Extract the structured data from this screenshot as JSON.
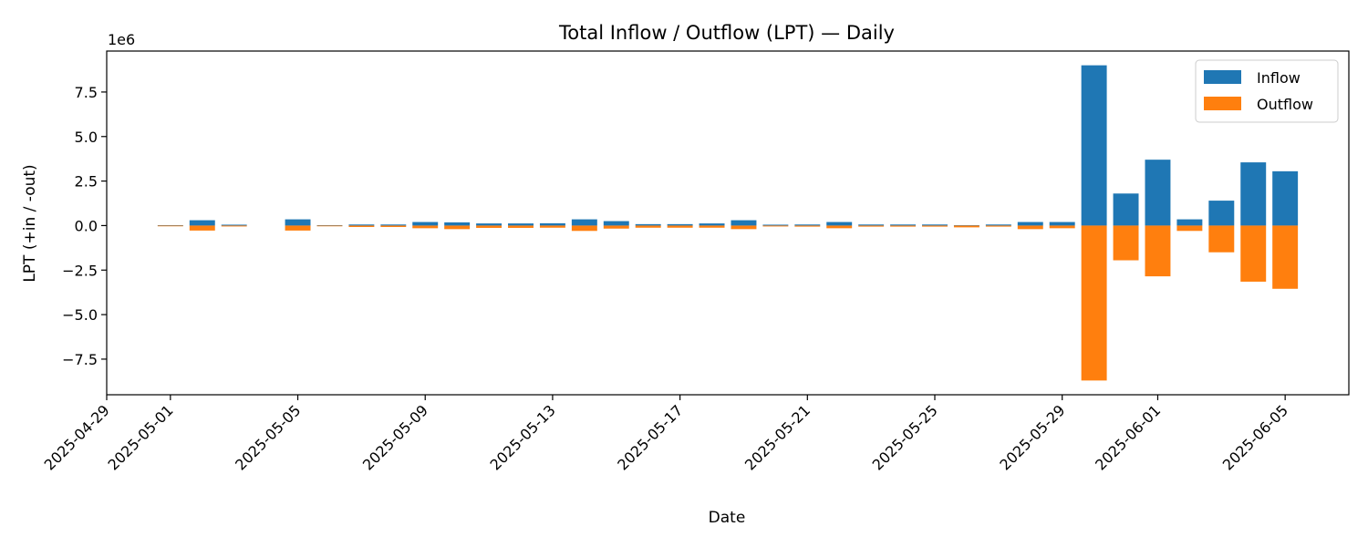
{
  "chart_data": {
    "type": "bar",
    "title": "Total Inflow / Outflow (LPT) — Daily",
    "xlabel": "Date",
    "ylabel": "LPT (+in / -out)",
    "y_offset_text": "1e6",
    "y_multiplier": 1000000,
    "ylim": [
      -9500000,
      9800000
    ],
    "xlim": [
      "2025-04-29",
      "2025-06-07"
    ],
    "grid": false,
    "legend_position": "top-right",
    "colors": {
      "Inflow": "#1f77b4",
      "Outflow": "#ff7f0e"
    },
    "y_ticks": [
      -7500000,
      -5000000,
      -2500000,
      0,
      2500000,
      5000000,
      7500000
    ],
    "y_tick_labels": [
      "−7.5",
      "−5.0",
      "−2.5",
      "0.0",
      "2.5",
      "5.0",
      "7.5"
    ],
    "x_ticks": [
      "2025-04-29",
      "2025-05-01",
      "2025-05-05",
      "2025-05-09",
      "2025-05-13",
      "2025-05-17",
      "2025-05-21",
      "2025-05-25",
      "2025-05-29",
      "2025-06-01",
      "2025-06-05"
    ],
    "x_tick_labels": [
      "2025-04-29",
      "2025-05-01",
      "2025-05-05",
      "2025-05-09",
      "2025-05-13",
      "2025-05-17",
      "2025-05-21",
      "2025-05-25",
      "2025-05-29",
      "2025-06-01",
      "2025-06-05"
    ],
    "categories": [
      "2025-05-01",
      "2025-05-02",
      "2025-05-03",
      "2025-05-05",
      "2025-05-06",
      "2025-05-07",
      "2025-05-08",
      "2025-05-09",
      "2025-05-10",
      "2025-05-11",
      "2025-05-12",
      "2025-05-13",
      "2025-05-14",
      "2025-05-15",
      "2025-05-16",
      "2025-05-17",
      "2025-05-18",
      "2025-05-19",
      "2025-05-20",
      "2025-05-21",
      "2025-05-22",
      "2025-05-23",
      "2025-05-24",
      "2025-05-25",
      "2025-05-26",
      "2025-05-27",
      "2025-05-28",
      "2025-05-29",
      "2025-05-30",
      "2025-05-31",
      "2025-06-01",
      "2025-06-02",
      "2025-06-03",
      "2025-06-04",
      "2025-06-05"
    ],
    "series": [
      {
        "name": "Inflow",
        "values": [
          20000,
          300000,
          50000,
          350000,
          20000,
          60000,
          60000,
          200000,
          180000,
          120000,
          120000,
          130000,
          350000,
          250000,
          80000,
          80000,
          120000,
          300000,
          50000,
          60000,
          200000,
          60000,
          60000,
          60000,
          20000,
          60000,
          200000,
          200000,
          9000000,
          1800000,
          3700000,
          350000,
          1400000,
          3550000,
          3050000
        ]
      },
      {
        "name": "Outflow",
        "values": [
          -20000,
          -280000,
          -50000,
          -280000,
          -20000,
          -80000,
          -80000,
          -150000,
          -200000,
          -130000,
          -130000,
          -120000,
          -300000,
          -170000,
          -120000,
          -120000,
          -120000,
          -200000,
          -50000,
          -60000,
          -150000,
          -60000,
          -60000,
          -60000,
          -100000,
          -60000,
          -200000,
          -150000,
          -8700000,
          -1950000,
          -2850000,
          -300000,
          -1500000,
          -3150000,
          -3550000
        ]
      }
    ]
  }
}
